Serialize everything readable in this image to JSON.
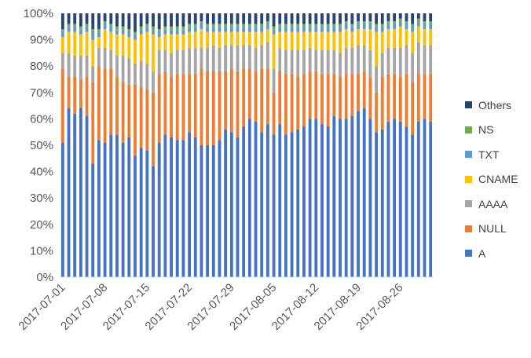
{
  "chart_data": {
    "type": "bar",
    "stacked": true,
    "percent_stacked": true,
    "y_axis": {
      "ylim": [
        0,
        100
      ],
      "tick_labels": [
        "0%",
        "10%",
        "20%",
        "30%",
        "40%",
        "50%",
        "60%",
        "70%",
        "80%",
        "90%",
        "100%"
      ]
    },
    "x_axis": {
      "tick_labels": [
        "2017-07-01",
        "2017-07-08",
        "2017-07-15",
        "2017-07-22",
        "2017-07-29",
        "2017-08-05",
        "2017-08-12",
        "2017-08-19",
        "2017-08-26"
      ]
    },
    "grid": false,
    "legend_position": "right",
    "categories": [
      "2017-07-01",
      "2017-07-02",
      "2017-07-03",
      "2017-07-04",
      "2017-07-05",
      "2017-07-06",
      "2017-07-07",
      "2017-07-08",
      "2017-07-09",
      "2017-07-10",
      "2017-07-11",
      "2017-07-12",
      "2017-07-13",
      "2017-07-14",
      "2017-07-15",
      "2017-07-16",
      "2017-07-17",
      "2017-07-18",
      "2017-07-19",
      "2017-07-20",
      "2017-07-21",
      "2017-07-22",
      "2017-07-23",
      "2017-07-24",
      "2017-07-25",
      "2017-07-26",
      "2017-07-27",
      "2017-07-28",
      "2017-07-29",
      "2017-07-30",
      "2017-07-31",
      "2017-08-01",
      "2017-08-02",
      "2017-08-03",
      "2017-08-04",
      "2017-08-05",
      "2017-08-06",
      "2017-08-07",
      "2017-08-08",
      "2017-08-09",
      "2017-08-10",
      "2017-08-11",
      "2017-08-12",
      "2017-08-13",
      "2017-08-14",
      "2017-08-15",
      "2017-08-16",
      "2017-08-17",
      "2017-08-18",
      "2017-08-19",
      "2017-08-20",
      "2017-08-21",
      "2017-08-22",
      "2017-08-23",
      "2017-08-24",
      "2017-08-25",
      "2017-08-26",
      "2017-08-27",
      "2017-08-28",
      "2017-08-29",
      "2017-08-30",
      "2017-08-31"
    ],
    "series": [
      {
        "name": "A",
        "color": "#4472C4",
        "values": [
          51,
          64,
          62,
          64,
          61,
          43,
          52,
          51,
          54,
          54,
          51,
          53,
          46,
          49,
          48,
          42,
          51,
          54,
          53,
          52,
          52,
          55,
          53,
          50,
          50,
          50,
          52,
          56,
          55,
          53,
          57,
          60,
          59,
          55,
          58,
          54,
          58,
          54,
          55,
          56,
          57,
          60,
          60,
          58,
          57,
          61,
          60,
          60,
          61,
          63,
          64,
          60,
          55,
          56,
          59,
          60,
          59,
          57,
          54,
          59,
          60,
          59
        ],
        "note": ""
      },
      {
        "name": "NULL",
        "color": "#ED7D31",
        "values": [
          28,
          12,
          14,
          11,
          15,
          31,
          28,
          28,
          25,
          22,
          23,
          20,
          27,
          23,
          23,
          28,
          26,
          24,
          23,
          25,
          25,
          22,
          24,
          29,
          28,
          28,
          26,
          22,
          24,
          25,
          22,
          19,
          19,
          24,
          21,
          16,
          20,
          23,
          22,
          20,
          20,
          18,
          18,
          19,
          20,
          16,
          16,
          17,
          16,
          14,
          14,
          16,
          15,
          20,
          18,
          17,
          17,
          20,
          20,
          18,
          17,
          18
        ]
      },
      {
        "name": "AAAA",
        "color": "#A5A5A5",
        "values": [
          6,
          9,
          8,
          9,
          8,
          6,
          7,
          8,
          7,
          8,
          10,
          10,
          8,
          10,
          10,
          8,
          9,
          8,
          9,
          9,
          9,
          10,
          10,
          8,
          9,
          10,
          9,
          10,
          9,
          10,
          9,
          9,
          9,
          9,
          10,
          9,
          9,
          9,
          9,
          10,
          9,
          9,
          8,
          9,
          9,
          9,
          9,
          10,
          10,
          11,
          10,
          10,
          10,
          9,
          10,
          10,
          11,
          11,
          11,
          12,
          11,
          11
        ]
      },
      {
        "name": "CNAME",
        "color": "#FFC000",
        "values": [
          6,
          8,
          9,
          8,
          9,
          10,
          4,
          7,
          7,
          8,
          8,
          8,
          9,
          10,
          12,
          14,
          5,
          6,
          7,
          6,
          6,
          6,
          6,
          7,
          6,
          5,
          6,
          5,
          5,
          5,
          5,
          5,
          6,
          5,
          5,
          13,
          6,
          7,
          7,
          7,
          7,
          6,
          7,
          7,
          7,
          7,
          8,
          7,
          6,
          6,
          6,
          8,
          13,
          8,
          7,
          7,
          8,
          6,
          8,
          6,
          6,
          6
        ]
      },
      {
        "name": "TXT",
        "color": "#5B9BD5",
        "values": [
          2,
          2,
          2,
          2,
          2,
          3,
          2,
          2,
          2,
          2,
          2,
          2,
          2,
          2,
          2,
          2,
          2,
          2,
          2,
          2,
          2,
          2,
          2,
          2,
          2,
          2,
          2,
          2,
          2,
          2,
          2,
          2,
          2,
          2,
          2,
          2,
          2,
          2,
          2,
          2,
          2,
          2,
          2,
          2,
          2,
          2,
          2,
          2,
          2,
          2,
          2,
          2,
          2,
          2,
          2,
          2,
          2,
          2,
          2,
          2,
          2,
          2
        ]
      },
      {
        "name": "NS",
        "color": "#70AD47",
        "values": [
          1,
          1,
          1,
          1,
          1,
          1,
          1,
          1,
          1,
          1,
          1,
          1,
          1,
          1,
          1,
          1,
          1,
          1,
          1,
          1,
          1,
          1,
          1,
          1,
          1,
          1,
          1,
          1,
          1,
          1,
          1,
          1,
          1,
          1,
          1,
          1,
          1,
          1,
          1,
          1,
          1,
          1,
          1,
          1,
          1,
          1,
          1,
          1,
          1,
          1,
          1,
          1,
          1,
          1,
          1,
          1,
          1,
          1,
          1,
          1,
          1,
          1
        ]
      },
      {
        "name": "Others",
        "color": "#264478",
        "values": [
          6,
          4,
          4,
          5,
          4,
          6,
          6,
          3,
          4,
          5,
          5,
          6,
          7,
          5,
          4,
          5,
          6,
          5,
          5,
          5,
          5,
          4,
          4,
          3,
          4,
          4,
          4,
          4,
          4,
          4,
          4,
          4,
          4,
          4,
          3,
          5,
          4,
          4,
          4,
          4,
          4,
          4,
          4,
          4,
          4,
          4,
          4,
          3,
          4,
          3,
          3,
          3,
          4,
          4,
          3,
          3,
          2,
          3,
          4,
          2,
          3,
          3
        ]
      }
    ]
  }
}
